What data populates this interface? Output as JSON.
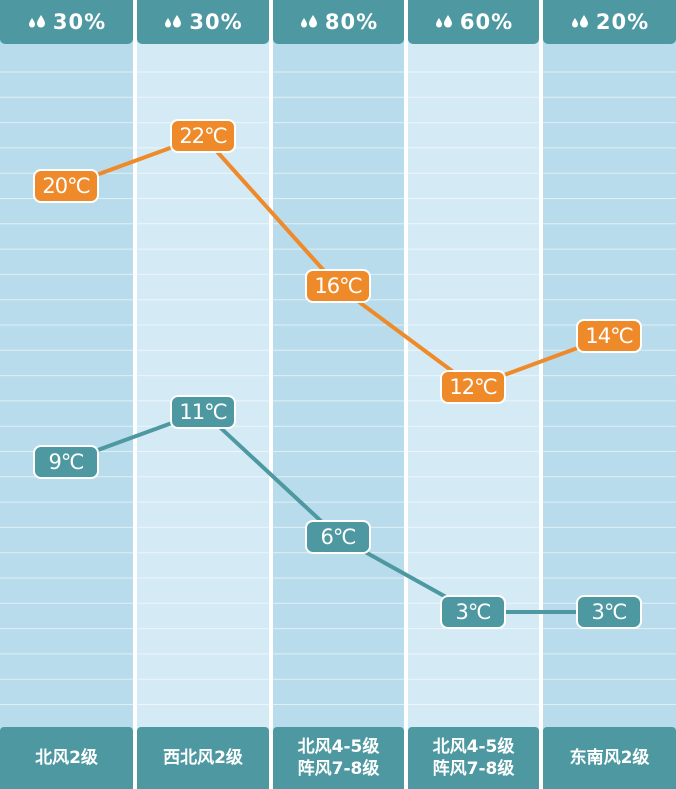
{
  "chart_data": {
    "type": "line",
    "categories": [
      "北风2级",
      "西北风2级",
      "北风4-5级 阵风7-8级",
      "北风4-5级 阵风7-8级",
      "东南风2级"
    ],
    "precipitation": [
      "30%",
      "30%",
      "80%",
      "60%",
      "20%"
    ],
    "wind": [
      [
        "北风2级"
      ],
      [
        "西北风2级"
      ],
      [
        "北风4-5级",
        "阵风7-8级"
      ],
      [
        "北风4-5级",
        "阵风7-8级"
      ],
      [
        "东南风2级"
      ]
    ],
    "series": [
      {
        "values": [
          20,
          22,
          16,
          12,
          14
        ],
        "labels": [
          "20℃",
          "22℃",
          "16℃",
          "12℃",
          "14℃"
        ],
        "color": "#ef8a2a"
      },
      {
        "values": [
          9,
          11,
          6,
          3,
          3
        ],
        "labels": [
          "9℃",
          "11℃",
          "6℃",
          "3℃",
          "3℃"
        ],
        "color": "#4e99a1"
      }
    ],
    "ylim": [
      0,
      24
    ]
  },
  "colors": {
    "header": "#4e99a1",
    "high": "#ef8a2a",
    "low": "#4e99a1",
    "stripe_a": "#b9dcec",
    "stripe_b": "#d4eaf5"
  }
}
